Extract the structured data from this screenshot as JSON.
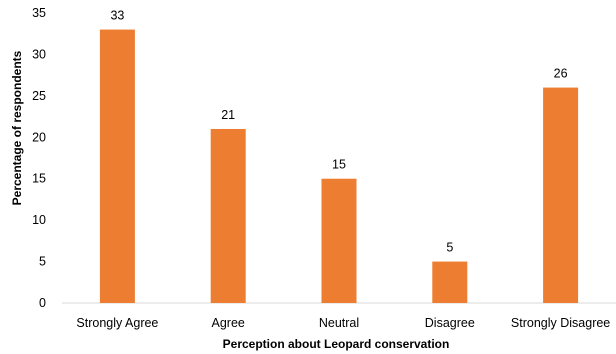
{
  "chart_data": {
    "type": "bar",
    "title": "",
    "xlabel": "Perception about Leopard conservation",
    "ylabel": "Percentage of respondents",
    "categories": [
      "Strongly Agree",
      "Agree",
      "Neutral",
      "Disagree",
      "Strongly Disagree"
    ],
    "values": [
      33,
      21,
      15,
      5,
      26
    ],
    "data_labels": [
      "33",
      "21",
      "15",
      "5",
      "26"
    ],
    "ylim": [
      0,
      35
    ],
    "yticks": [
      0,
      5,
      10,
      15,
      20,
      25,
      30,
      35
    ],
    "grid": false,
    "legend": "none",
    "bar_color": "#ED7D31",
    "axis_color": "#D9D9D9"
  }
}
